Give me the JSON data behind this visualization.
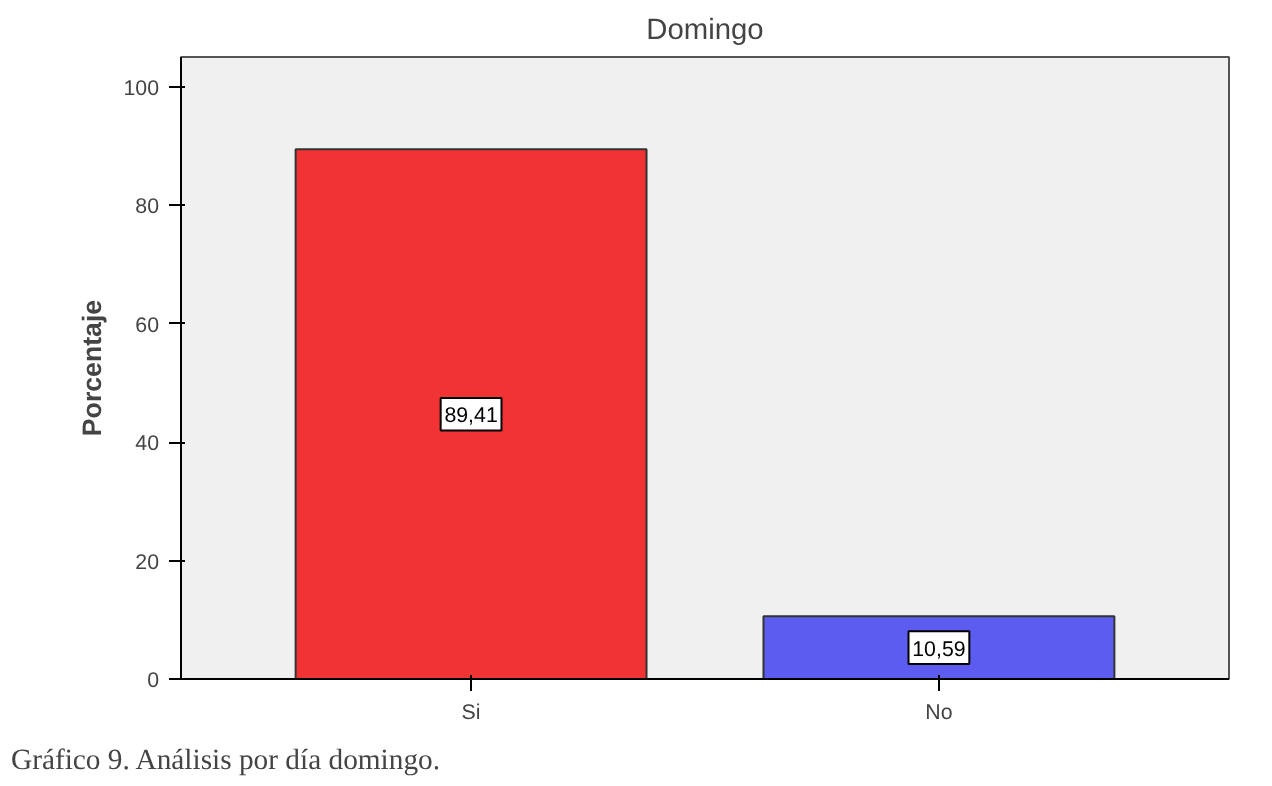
{
  "chart_data": {
    "type": "bar",
    "title": "Domingo",
    "ylabel": "Porcentaje",
    "categories": [
      "Si",
      "No"
    ],
    "values": [
      89.41,
      10.59
    ],
    "colors": [
      "#f23333",
      "#5c5cf0"
    ],
    "value_labels": [
      "89,41",
      "10,59"
    ],
    "ylim": [
      0,
      105
    ],
    "yticks": [
      0,
      20,
      40,
      60,
      80,
      100
    ],
    "grid": false,
    "annotations": [
      "Gráfico 9. Análisis por día domingo."
    ]
  }
}
